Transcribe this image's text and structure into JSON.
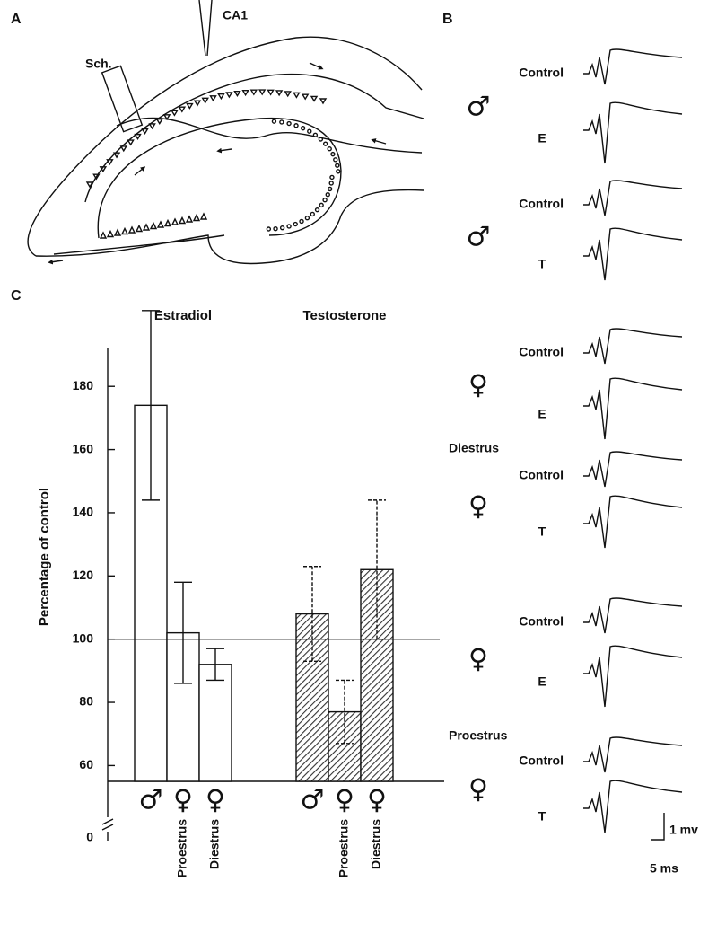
{
  "panel_labels": [
    "A",
    "B",
    "C"
  ],
  "panel_a": {
    "labels": [
      "Sch.",
      "CA1"
    ]
  },
  "panel_b": {
    "groups": [
      {
        "symbol": "♂",
        "traces": [
          "Control",
          "E"
        ]
      },
      {
        "symbol": "♂",
        "traces": [
          "Control",
          "T"
        ]
      },
      {
        "symbol": "♀",
        "traces": [
          "Control",
          "E"
        ]
      },
      {
        "heading": "Diestrus",
        "symbol": "♀",
        "traces": [
          "Control",
          "T"
        ]
      },
      {
        "symbol": "♀",
        "traces": [
          "Control",
          "E"
        ]
      },
      {
        "heading": "Proestrus",
        "symbol": "♀",
        "traces": [
          "Control",
          "T"
        ]
      }
    ],
    "scale_labels": [
      "1 mv",
      "5 ms"
    ]
  },
  "chart_data": {
    "type": "bar",
    "ylabel": "Percentage of control",
    "ylim": [
      55,
      192
    ],
    "yticks": [
      60,
      80,
      100,
      120,
      140,
      160,
      180
    ],
    "axis_break_label": "0",
    "reference_line": 100,
    "symbols": [
      "♂",
      "♀",
      "♀"
    ],
    "categories": [
      null,
      "Proestrus",
      "Diestrus"
    ],
    "series": [
      {
        "name": "Estradiol",
        "color": "#ffffff",
        "values": [
          174,
          102,
          92
        ],
        "errors": [
          30,
          16,
          5
        ]
      },
      {
        "name": "Testosterone",
        "color": "#555555",
        "pattern": "hatched",
        "values": [
          108,
          77,
          122
        ],
        "errors": [
          15,
          10,
          22
        ]
      }
    ]
  }
}
